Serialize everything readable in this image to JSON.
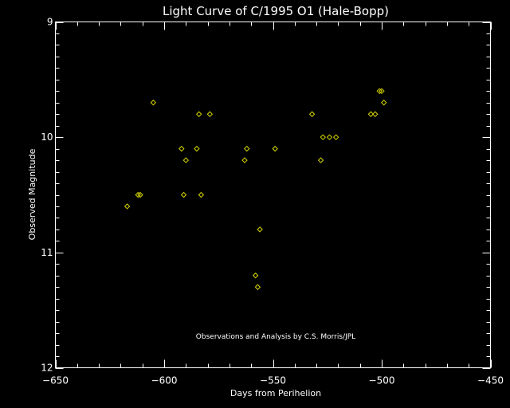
{
  "chart_data": {
    "type": "scatter",
    "title": "Light Curve of C/1995 O1 (Hale-Bopp)",
    "xlabel": "Days from Perihelion",
    "ylabel": "Observed Magnitude",
    "xlim": [
      -650,
      -450
    ],
    "ylim": [
      12,
      9
    ],
    "y_inverted": true,
    "xticks": [
      -650,
      -600,
      -550,
      -500,
      -450
    ],
    "xtick_labels": [
      "−650",
      "−600",
      "−550",
      "−500",
      "−450"
    ],
    "x_minor_step": 10,
    "yticks": [
      9,
      10,
      11,
      12
    ],
    "ytick_labels": [
      "9",
      "10",
      "11",
      "12"
    ],
    "y_minor_step": 0.1,
    "grid": false,
    "marker": "diamond",
    "marker_color": "#d4d400",
    "background": "#000000",
    "foreground": "#ffffff",
    "annotation": "Observations and Analysis by C.S. Morris/JPL",
    "points": [
      {
        "x": -617,
        "y": 10.6
      },
      {
        "x": -612,
        "y": 10.5
      },
      {
        "x": -611,
        "y": 10.5
      },
      {
        "x": -605,
        "y": 9.7
      },
      {
        "x": -592,
        "y": 10.1
      },
      {
        "x": -591,
        "y": 10.5
      },
      {
        "x": -590,
        "y": 10.2
      },
      {
        "x": -585,
        "y": 10.1
      },
      {
        "x": -584,
        "y": 9.8
      },
      {
        "x": -583,
        "y": 10.5
      },
      {
        "x": -579,
        "y": 9.8
      },
      {
        "x": -563,
        "y": 10.2
      },
      {
        "x": -562,
        "y": 10.1
      },
      {
        "x": -558,
        "y": 11.2
      },
      {
        "x": -557,
        "y": 11.3
      },
      {
        "x": -556,
        "y": 10.8
      },
      {
        "x": -549,
        "y": 10.1
      },
      {
        "x": -532,
        "y": 9.8
      },
      {
        "x": -528,
        "y": 10.2
      },
      {
        "x": -527,
        "y": 10.0
      },
      {
        "x": -524,
        "y": 10.0
      },
      {
        "x": -521,
        "y": 10.0
      },
      {
        "x": -505,
        "y": 9.8
      },
      {
        "x": -503,
        "y": 9.8
      },
      {
        "x": -501,
        "y": 9.6
      },
      {
        "x": -500,
        "y": 9.6
      },
      {
        "x": -499,
        "y": 9.7
      }
    ]
  }
}
